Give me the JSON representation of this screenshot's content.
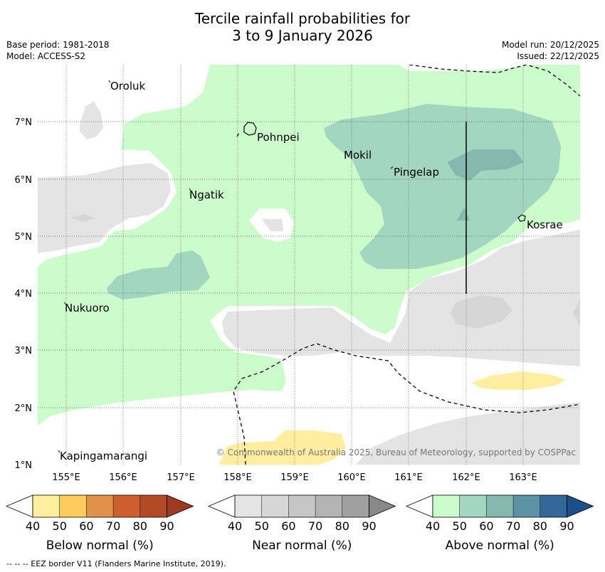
{
  "title": {
    "line1": "Tercile rainfall probabilities for",
    "line2": "3 to 9 January 2026"
  },
  "meta": {
    "base_period": "Base period: 1981-2018",
    "model": "Model: ACCESS-S2",
    "model_run": "Model run: 20/12/2025",
    "issued": "Issued: 22/12/2025"
  },
  "map": {
    "lon_ticks": [
      "155°E",
      "156°E",
      "157°E",
      "158°E",
      "159°E",
      "160°E",
      "161°E",
      "162°E",
      "163°E"
    ],
    "lat_ticks": [
      "7°N",
      "6°N",
      "5°N",
      "4°N",
      "3°N",
      "2°N",
      "1°N"
    ],
    "places": {
      "oroluk": "Oroluk",
      "pohnpei": "Pohnpei",
      "mokil": "Mokil",
      "pingelap": "Pingelap",
      "ngatik": "Ngatik",
      "kosrae": "Kosrae",
      "nukuoro": "Nukuoro",
      "kapingamarangi": "Kapingamarangi"
    },
    "copyright": "© Commonwealth of Australia 2025, Bureau of Meteorology, supported by COSPPac"
  },
  "colorbars": {
    "ticks": [
      "40",
      "50",
      "60",
      "70",
      "80",
      "90"
    ],
    "below": {
      "label": "Below normal (%)",
      "colors": [
        "#ffeda0",
        "#fecc5c",
        "#e0924a",
        "#cc5e30",
        "#b24a28",
        "#9e3a20"
      ]
    },
    "near": {
      "label": "Near normal (%)",
      "colors": [
        "#e4e4e4",
        "#d6d6d6",
        "#c6c6c6",
        "#b4b4b4",
        "#a0a0a0",
        "#888888"
      ]
    },
    "above": {
      "label": "Above normal (%)",
      "colors": [
        "#ccfccc",
        "#a2d6be",
        "#85b8ae",
        "#5b93a4",
        "#33679a",
        "#1b4f8a"
      ]
    }
  },
  "footnote": "--  --  -- EEZ border V11 (Flanders Marine Institute, 2019)."
}
